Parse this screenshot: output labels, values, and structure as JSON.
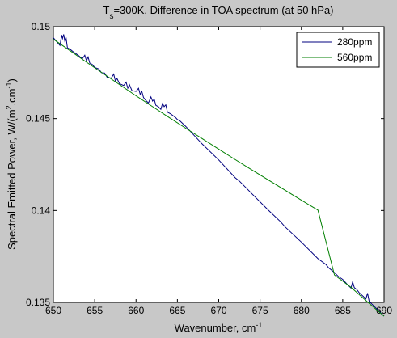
{
  "chart_data": {
    "type": "line",
    "title": {
      "prefix": "T",
      "subscript": "s",
      "rest": "=300K, Difference in TOA spectrum (at 50 hPa)"
    },
    "xlabel": {
      "text": "Wavenumber, cm",
      "superscript": "-1"
    },
    "ylabel": {
      "part1": "Spectral Emitted Power, W/(m",
      "sup1": "2",
      "part2": ".cm",
      "sup2": "-1",
      "part3": ")"
    },
    "xlim": [
      650,
      690
    ],
    "ylim": [
      0.135,
      0.15
    ],
    "xticks": [
      650,
      655,
      660,
      665,
      670,
      675,
      680,
      685,
      690
    ],
    "yticks": [
      0.135,
      0.14,
      0.145,
      0.15
    ],
    "ytick_labels": [
      "0.135",
      "0.14",
      "0.145",
      "0.15"
    ],
    "grid": false,
    "legend_position": "top-right",
    "series": [
      {
        "name": "280ppm",
        "color": "#00007f",
        "x": [
          650.0,
          650.8,
          651.0,
          651.1,
          651.25,
          651.4,
          651.55,
          651.7,
          652.0,
          652.5,
          653.0,
          653.5,
          653.8,
          654.0,
          654.2,
          654.4,
          654.7,
          655.0,
          655.5,
          655.8,
          656.2,
          656.5,
          657.0,
          657.3,
          657.5,
          657.7,
          658.0,
          658.5,
          658.8,
          659.0,
          659.2,
          659.5,
          660.0,
          660.3,
          660.5,
          660.7,
          660.9,
          661.2,
          661.5,
          661.8,
          662.0,
          662.2,
          662.4,
          662.7,
          663.0,
          663.2,
          663.4,
          663.6,
          663.8,
          664.2,
          664.8,
          665.0,
          665.3,
          666.0,
          668.0,
          670.0,
          672.0,
          672.5,
          674.0,
          676.0,
          677.5,
          678.0,
          680.0,
          682.0,
          683.0,
          683.3,
          684.0,
          684.5,
          685.0,
          685.5,
          686.0,
          686.2,
          686.4,
          686.7,
          687.0,
          687.5,
          687.8,
          688.0,
          688.2,
          688.5,
          689.0,
          690.0
        ],
        "y": [
          0.1494,
          0.14898,
          0.14955,
          0.14935,
          0.14958,
          0.14918,
          0.14935,
          0.14885,
          0.14878,
          0.1486,
          0.14845,
          0.14825,
          0.14845,
          0.14815,
          0.14835,
          0.14802,
          0.14795,
          0.14778,
          0.1477,
          0.1475,
          0.14748,
          0.14725,
          0.1472,
          0.14742,
          0.14705,
          0.14718,
          0.1469,
          0.1468,
          0.14698,
          0.14665,
          0.14685,
          0.14652,
          0.14648,
          0.14665,
          0.14632,
          0.14648,
          0.14615,
          0.14598,
          0.14585,
          0.14618,
          0.14595,
          0.14605,
          0.14572,
          0.14565,
          0.1455,
          0.14582,
          0.14565,
          0.14575,
          0.14535,
          0.14525,
          0.14505,
          0.14495,
          0.14488,
          0.14458,
          0.14362,
          0.14275,
          0.14178,
          0.1416,
          0.14092,
          0.14002,
          0.13938,
          0.13912,
          0.13828,
          0.13738,
          0.13705,
          0.13688,
          0.13662,
          0.1364,
          0.13625,
          0.136,
          0.13578,
          0.13612,
          0.1358,
          0.1357,
          0.13552,
          0.13532,
          0.13518,
          0.1355,
          0.13505,
          0.13492,
          0.1347,
          0.13425
        ]
      },
      {
        "name": "560ppm",
        "color": "#007f00",
        "x": [
          650,
          652,
          654,
          656,
          658,
          660,
          662,
          664,
          666,
          668,
          670,
          672,
          674,
          676,
          678,
          680,
          682,
          684,
          686,
          688,
          690
        ],
        "y": [
          0.14932,
          0.1487,
          0.14807,
          0.14746,
          0.14685,
          0.14624,
          0.14565,
          0.14506,
          0.14448,
          0.14391,
          0.14334,
          0.14277,
          0.14221,
          0.14166,
          0.14111,
          0.14056,
          0.14002,
          0.13649,
          0.13582,
          0.13502,
          0.13425
        ]
      }
    ]
  }
}
